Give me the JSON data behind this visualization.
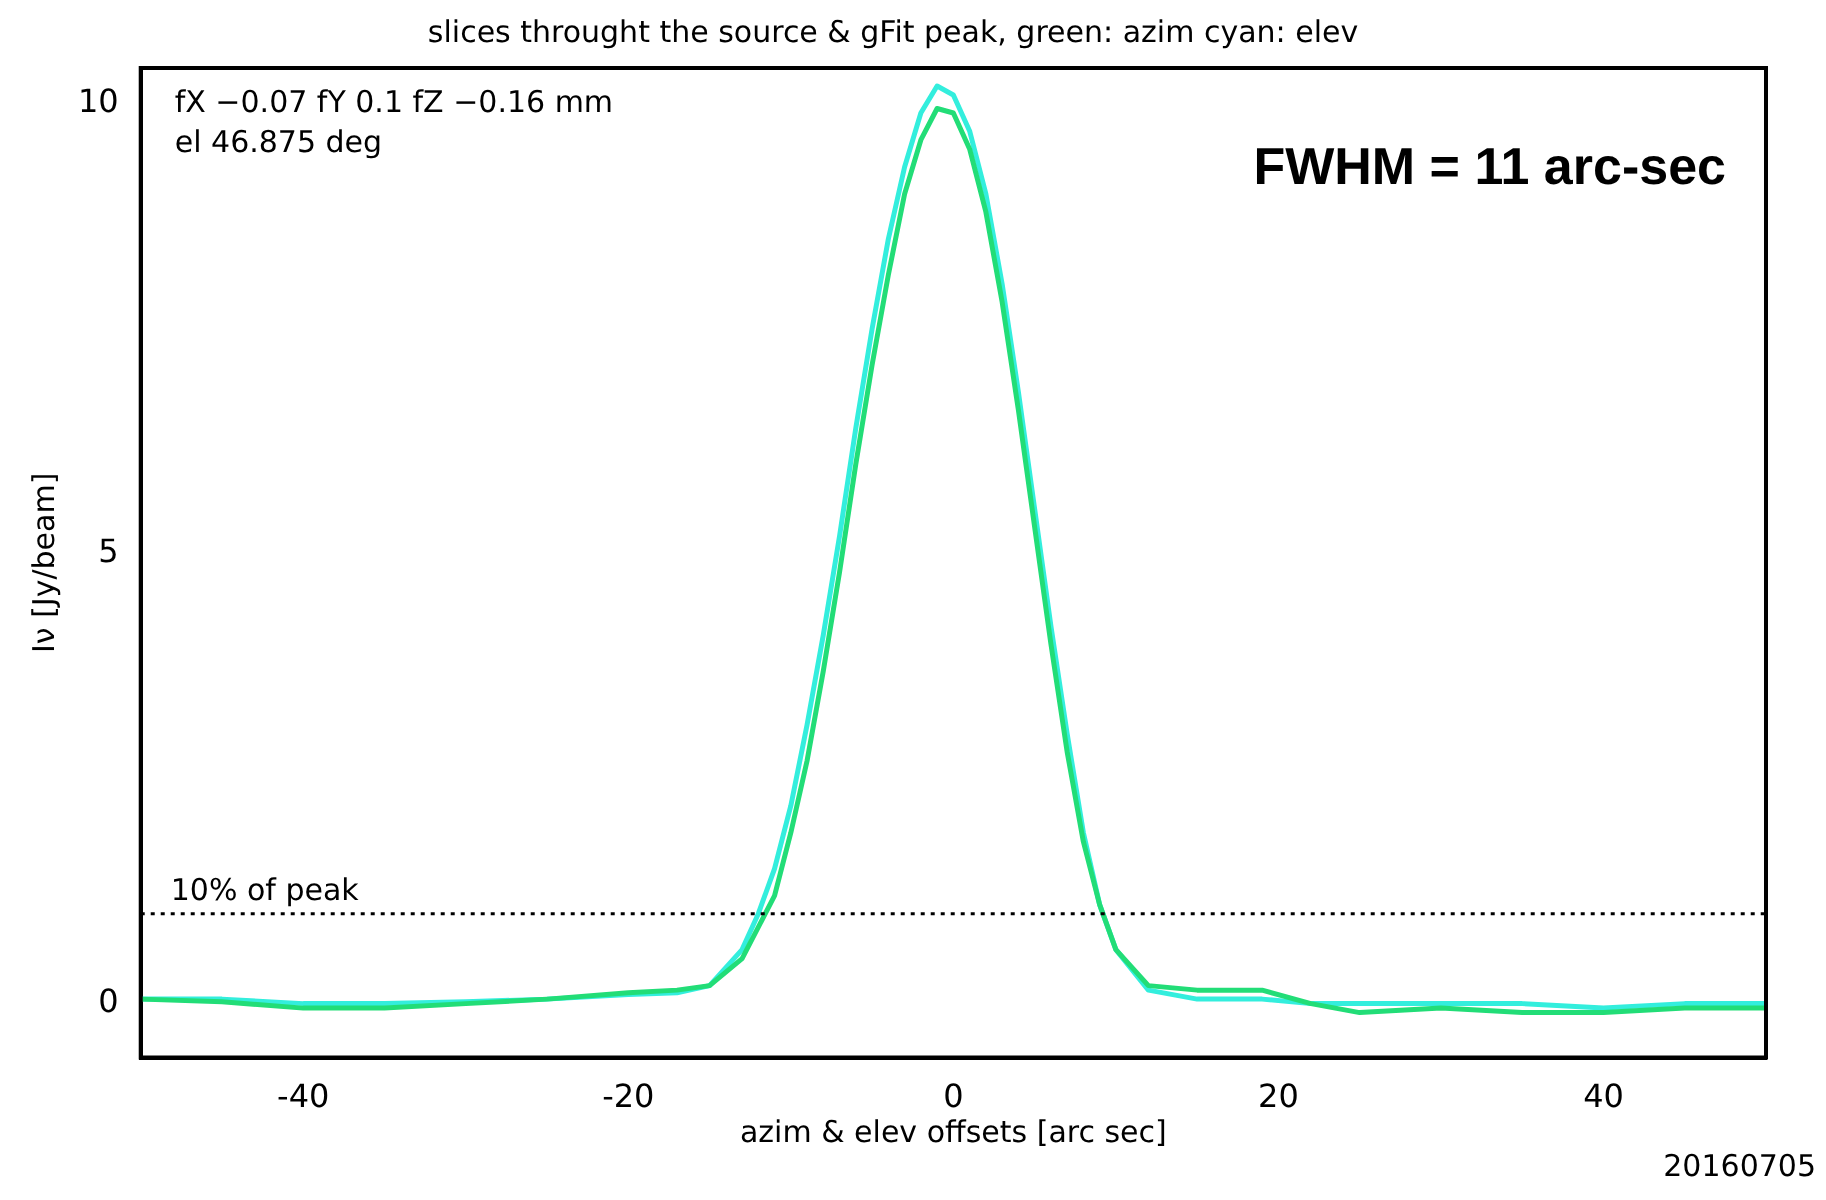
{
  "chart_data": {
    "type": "line",
    "title": "slices throught the source & gFit peak, green: azim cyan: elev",
    "xlabel": "azim & elev offsets [arc sec]",
    "ylabel": "Iν [Jy/beam]",
    "xlim": [
      -50,
      50
    ],
    "xticks": [
      -40,
      -20,
      0,
      20,
      40
    ],
    "ylim": [
      -0.6,
      10.4
    ],
    "yticks": [
      0,
      5,
      10
    ],
    "grid": false,
    "legend": false,
    "marker": "none",
    "line_style": "solid",
    "series": [
      {
        "color": "#22dd77",
        "x": [
          -50,
          -45,
          -40,
          -35,
          -30,
          -25,
          -20,
          -17,
          -15,
          -13,
          -11,
          -10,
          -9,
          -8,
          -7,
          -6,
          -5,
          -4,
          -3,
          -2,
          -1,
          0,
          1,
          2,
          3,
          4,
          5,
          6,
          7,
          8,
          9,
          10,
          12,
          15,
          19,
          22,
          25,
          30,
          35,
          40,
          45,
          50
        ],
        "values": [
          0.05,
          0.02,
          -0.05,
          -0.05,
          0,
          0.05,
          0.12,
          0.15,
          0.2,
          0.5,
          1.2,
          1.9,
          2.7,
          3.7,
          4.8,
          6,
          7.1,
          8.1,
          9,
          9.6,
          9.95,
          9.9,
          9.5,
          8.8,
          7.8,
          6.6,
          5.3,
          4,
          2.8,
          1.8,
          1.1,
          0.6,
          0.2,
          0.15,
          0.15,
          0,
          -0.1,
          -0.05,
          -0.1,
          -0.1,
          -0.05,
          -0.05
        ]
      },
      {
        "color": "#33eedd",
        "x": [
          -50,
          -45,
          -40,
          -35,
          -30,
          -25,
          -20,
          -17,
          -15,
          -13,
          -12,
          -11,
          -10,
          -9,
          -8,
          -7,
          -6,
          -5,
          -4,
          -3,
          -2,
          -1,
          0,
          1,
          2,
          3,
          4,
          5,
          6,
          7,
          8,
          9,
          10,
          12,
          15,
          19,
          22,
          25,
          30,
          35,
          40,
          45,
          50
        ],
        "values": [
          0.05,
          0.05,
          0,
          0,
          0.02,
          0.05,
          0.1,
          0.12,
          0.2,
          0.6,
          1,
          1.5,
          2.2,
          3.1,
          4.1,
          5.2,
          6.4,
          7.5,
          8.5,
          9.3,
          9.9,
          10.2,
          10.1,
          9.7,
          9,
          8,
          6.8,
          5.5,
          4.2,
          3,
          1.9,
          1.1,
          0.6,
          0.15,
          0.05,
          0.05,
          0,
          0,
          0,
          0,
          -0.05,
          0,
          0
        ]
      }
    ],
    "ref_lines": [
      {
        "axis": "y",
        "value": 1,
        "label": "10% of peak",
        "color": "#000000",
        "line_style": "dotted"
      }
    ],
    "annotations": [
      "fX −0.07 fY 0.1 fZ −0.16 mm",
      "el 46.875 deg",
      "FWHM = 11 arc-sec",
      "20160705"
    ]
  }
}
